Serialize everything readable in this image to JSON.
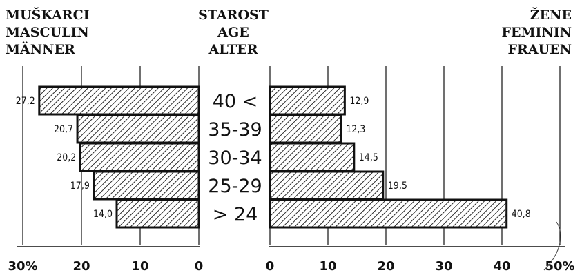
{
  "headers": {
    "left": [
      "MUŠKARCI",
      "MASCULIN",
      "MÄNNER"
    ],
    "center": [
      "STAROST",
      "AGE",
      "ALTER"
    ],
    "right": [
      "ŽENE",
      "FEMININ",
      "FRAUEN"
    ]
  },
  "chart_data": {
    "type": "bar",
    "orientation": "horizontal",
    "layout": "population-pyramid",
    "categories": [
      "40 <",
      "35-39",
      "30-34",
      "25-29",
      "> 24"
    ],
    "series": [
      {
        "name": "MUŠKARCI / MASCULIN / MÄNNER",
        "side": "left",
        "values": [
          27.2,
          20.7,
          20.2,
          17.9,
          14.0
        ],
        "labels": [
          "27,2",
          "20,7",
          "20,2",
          "17,9",
          "14,0"
        ]
      },
      {
        "name": "ŽENE / FEMININ / FRAUEN",
        "side": "right",
        "values": [
          12.9,
          12.3,
          14.5,
          19.5,
          40.8
        ],
        "labels": [
          "12,9",
          "12,3",
          "14,5",
          "19,5",
          "40,8"
        ]
      }
    ],
    "left_axis": {
      "range": [
        0,
        30
      ],
      "ticks": [
        0,
        10,
        20,
        30
      ],
      "tick_labels": [
        "0",
        "10",
        "20",
        "30%"
      ]
    },
    "right_axis": {
      "range": [
        0,
        50
      ],
      "ticks": [
        0,
        10,
        20,
        30,
        40,
        50
      ],
      "tick_labels": [
        "0",
        "10",
        "20",
        "30",
        "40",
        "50%"
      ]
    },
    "grid": true,
    "bar_fill": "diagonal-hatch",
    "colors": {
      "ink": "#111111",
      "paper": "#ffffff"
    }
  }
}
